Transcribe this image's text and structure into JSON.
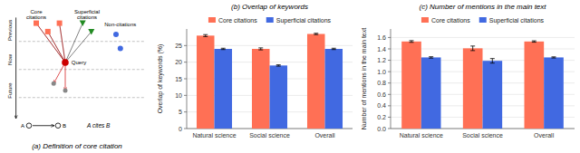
{
  "chart_data": [
    {
      "type": "diagram",
      "title": "(a) Definition of core citation",
      "annotations": [
        "Previous",
        "Now",
        "Future",
        "Query",
        "Core",
        "citations",
        "Superficial",
        "citations",
        "Non-citations",
        "A",
        "B",
        "A cites B"
      ],
      "colors": [
        "#FF7055",
        "#228B22",
        "#4169E1",
        "#CC0000",
        "#888888"
      ]
    },
    {
      "type": "bar",
      "title": "(b) Overlap of keywords",
      "ylabel": "Overlap of keywords (%)",
      "categories": [
        "Natural science",
        "Social science",
        "Overall"
      ],
      "series": [
        {
          "name": "Core citations",
          "color": "#FF7055",
          "values": [
            28.0,
            24.0,
            28.5
          ],
          "errors": [
            0.3,
            0.3,
            0.2
          ]
        },
        {
          "name": "Superficial citations",
          "color": "#4169E1",
          "values": [
            24.0,
            19.0,
            24.0
          ],
          "errors": [
            0.2,
            0.2,
            0.2
          ]
        }
      ],
      "ylim": [
        0,
        30
      ],
      "yticks": [
        0,
        5,
        10,
        15,
        20,
        25
      ],
      "grid": true,
      "legend": "top"
    },
    {
      "type": "bar",
      "title": "(c) Number of mentions in the main text",
      "ylabel": "Number of mentions in the main text",
      "categories": [
        "Natural science",
        "Social science",
        "Overall"
      ],
      "series": [
        {
          "name": "Core citations",
          "color": "#FF7055",
          "values": [
            1.53,
            1.41,
            1.53
          ],
          "errors": [
            0.015,
            0.04,
            0.012
          ]
        },
        {
          "name": "Superficial citations",
          "color": "#4169E1",
          "values": [
            1.25,
            1.19,
            1.25
          ],
          "errors": [
            0.012,
            0.04,
            0.01
          ]
        }
      ],
      "ylim": [
        0,
        1.75
      ],
      "yticks": [
        {
          "value": 0,
          "label": "0.0"
        },
        0.2,
        0.4,
        0.6,
        0.8,
        {
          "value": 1,
          "label": "1.0"
        },
        1.2,
        1.4,
        1.6
      ],
      "grid": true,
      "legend": "top"
    }
  ]
}
